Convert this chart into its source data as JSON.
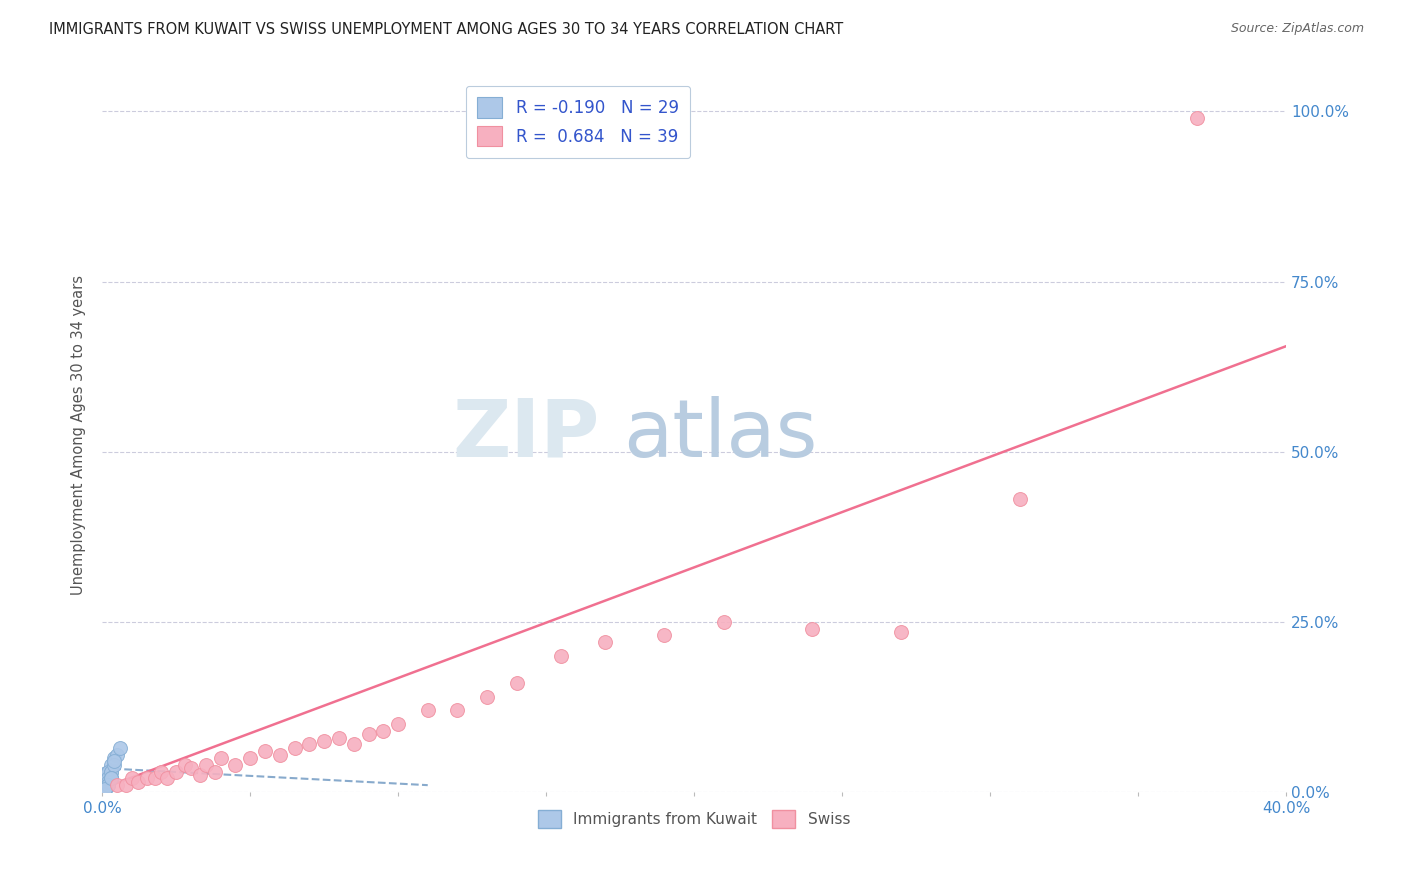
{
  "title": "IMMIGRANTS FROM KUWAIT VS SWISS UNEMPLOYMENT AMONG AGES 30 TO 34 YEARS CORRELATION CHART",
  "source": "Source: ZipAtlas.com",
  "ylabel": "Unemployment Among Ages 30 to 34 years",
  "xlim": [
    0.0,
    0.4
  ],
  "ylim": [
    0.0,
    1.05
  ],
  "xticks": [
    0.0,
    0.05,
    0.1,
    0.15,
    0.2,
    0.25,
    0.3,
    0.35,
    0.4
  ],
  "yticks": [
    0.0,
    0.25,
    0.5,
    0.75,
    1.0
  ],
  "ytick_labels": [
    "0.0%",
    "25.0%",
    "50.0%",
    "75.0%",
    "100.0%"
  ],
  "xtick_labels": [
    "0.0%",
    "",
    "",
    "",
    "",
    "",
    "",
    "",
    "40.0%"
  ],
  "blue_scatter_x": [
    0.001,
    0.0015,
    0.001,
    0.002,
    0.0018,
    0.001,
    0.003,
    0.002,
    0.002,
    0.001,
    0.004,
    0.003,
    0.002,
    0.001,
    0.003,
    0.002,
    0.005,
    0.003,
    0.001,
    0.002,
    0.006,
    0.004,
    0.002,
    0.001,
    0.003,
    0.004,
    0.002,
    0.001,
    0.003
  ],
  "blue_scatter_y": [
    0.01,
    0.02,
    0.005,
    0.03,
    0.015,
    0.025,
    0.04,
    0.01,
    0.03,
    0.005,
    0.05,
    0.02,
    0.01,
    0.005,
    0.03,
    0.02,
    0.055,
    0.03,
    0.005,
    0.015,
    0.065,
    0.04,
    0.01,
    0.005,
    0.02,
    0.045,
    0.01,
    0.005,
    0.02
  ],
  "pink_scatter_x": [
    0.005,
    0.008,
    0.01,
    0.012,
    0.015,
    0.018,
    0.02,
    0.022,
    0.025,
    0.028,
    0.03,
    0.033,
    0.035,
    0.038,
    0.04,
    0.045,
    0.05,
    0.055,
    0.06,
    0.065,
    0.07,
    0.075,
    0.08,
    0.085,
    0.09,
    0.095,
    0.1,
    0.11,
    0.12,
    0.13,
    0.14,
    0.155,
    0.17,
    0.19,
    0.21,
    0.24,
    0.27,
    0.31,
    0.37
  ],
  "pink_scatter_y": [
    0.01,
    0.01,
    0.02,
    0.015,
    0.02,
    0.02,
    0.03,
    0.02,
    0.03,
    0.04,
    0.035,
    0.025,
    0.04,
    0.03,
    0.05,
    0.04,
    0.05,
    0.06,
    0.055,
    0.065,
    0.07,
    0.075,
    0.08,
    0.07,
    0.085,
    0.09,
    0.1,
    0.12,
    0.12,
    0.14,
    0.16,
    0.2,
    0.22,
    0.23,
    0.25,
    0.24,
    0.235,
    0.43,
    0.99
  ],
  "blue_line_x": [
    0.0,
    0.11
  ],
  "blue_line_y": [
    0.035,
    0.01
  ],
  "pink_line_x": [
    0.0,
    0.4
  ],
  "pink_line_y": [
    0.005,
    0.655
  ],
  "R_blue": -0.19,
  "N_blue": 29,
  "R_pink": 0.684,
  "N_pink": 39,
  "blue_color": "#adc8e8",
  "blue_edge": "#85aed4",
  "pink_color": "#f7b0c0",
  "pink_edge": "#f090a0",
  "blue_line_color": "#88aacc",
  "pink_line_color": "#f07090",
  "legend_R_color": "#222222",
  "legend_val_color": "#3355cc",
  "legend_N_color": "#3355cc",
  "axis_tick_color": "#4488cc",
  "grid_color": "#ccccdd",
  "title_color": "#222222",
  "source_color": "#666666",
  "watermark_zip_color": "#dce8f0",
  "watermark_atlas_color": "#b8cce0",
  "background_color": "#ffffff"
}
